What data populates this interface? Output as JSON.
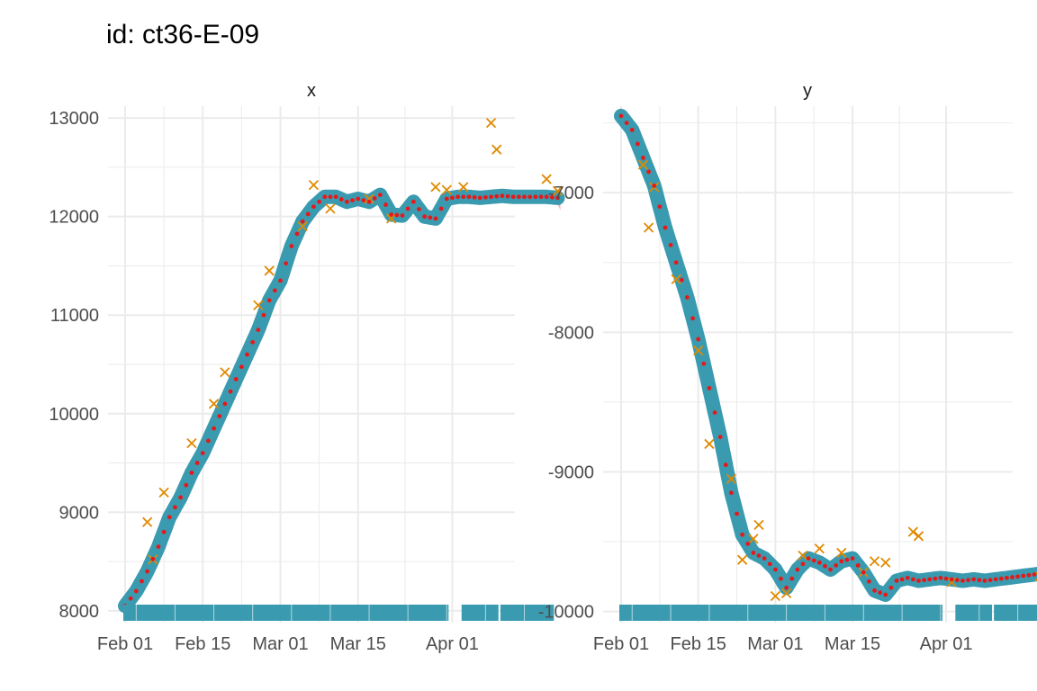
{
  "title": "id: ct36-E-09",
  "colors": {
    "band": "#3a9bb0",
    "point": "#e31a1c",
    "outlier": "#e08a00",
    "ribbon": "#f4a6a6",
    "grid": "#ebebeb",
    "axis_text": "#4d4d4d"
  },
  "chart_data": [
    {
      "type": "line",
      "panel": "x",
      "x_ticks": [
        "Feb 01",
        "Feb 15",
        "Mar 01",
        "Mar 15",
        "Apr 01"
      ],
      "y_ticks": [
        "8000",
        "9000",
        "10000",
        "11000",
        "12000",
        "13000"
      ],
      "ylim": [
        7880,
        13120
      ],
      "fit_knots": [
        [
          0,
          8050
        ],
        [
          2,
          8200
        ],
        [
          4,
          8400
        ],
        [
          6,
          8650
        ],
        [
          8,
          8950
        ],
        [
          10,
          9150
        ],
        [
          12,
          9400
        ],
        [
          14,
          9600
        ],
        [
          16,
          9850
        ],
        [
          18,
          10100
        ],
        [
          20,
          10350
        ],
        [
          22,
          10600
        ],
        [
          24,
          10850
        ],
        [
          26,
          11150
        ],
        [
          28,
          11350
        ],
        [
          30,
          11700
        ],
        [
          32,
          11950
        ],
        [
          34,
          12100
        ],
        [
          36,
          12200
        ],
        [
          38,
          12200
        ],
        [
          40,
          12150
        ],
        [
          42,
          12180
        ],
        [
          44,
          12150
        ],
        [
          46,
          12220
        ],
        [
          48,
          12020
        ],
        [
          50,
          12010
        ],
        [
          52,
          12150
        ],
        [
          54,
          12000
        ],
        [
          56,
          11980
        ],
        [
          58,
          12180
        ],
        [
          60,
          12200
        ],
        [
          62,
          12200
        ],
        [
          64,
          12190
        ],
        [
          66,
          12200
        ],
        [
          68,
          12210
        ],
        [
          70,
          12200
        ],
        [
          72,
          12200
        ],
        [
          74,
          12200
        ],
        [
          76,
          12200
        ],
        [
          78,
          12190
        ]
      ],
      "outliers": [
        [
          4,
          8900
        ],
        [
          5,
          8520
        ],
        [
          7,
          9200
        ],
        [
          12,
          9700
        ],
        [
          16,
          10100
        ],
        [
          18,
          10420
        ],
        [
          24,
          11100
        ],
        [
          26,
          11450
        ],
        [
          32,
          11900
        ],
        [
          34,
          12320
        ],
        [
          37,
          12080
        ],
        [
          44,
          12180
        ],
        [
          48,
          11980
        ],
        [
          56,
          12300
        ],
        [
          58,
          12270
        ],
        [
          61,
          12300
        ],
        [
          66,
          12950
        ],
        [
          67,
          12680
        ],
        [
          76,
          12380
        ],
        [
          78,
          12260
        ]
      ],
      "rug_days": [
        [
          0,
          58
        ],
        [
          61,
          67
        ],
        [
          68,
          77
        ]
      ]
    },
    {
      "type": "line",
      "panel": "y",
      "x_ticks": [
        "Feb 01",
        "Feb 15",
        "Mar 01",
        "Mar 15",
        "Apr 01"
      ],
      "y_ticks": [
        "-7000",
        "-8000",
        "-9000",
        "-10000"
      ],
      "ylim": [
        -10080,
        -6380
      ],
      "fit_knots": [
        [
          0,
          -6450
        ],
        [
          2,
          -6550
        ],
        [
          4,
          -6750
        ],
        [
          6,
          -6950
        ],
        [
          8,
          -7250
        ],
        [
          10,
          -7500
        ],
        [
          12,
          -7750
        ],
        [
          14,
          -8050
        ],
        [
          16,
          -8400
        ],
        [
          18,
          -8750
        ],
        [
          20,
          -9150
        ],
        [
          22,
          -9450
        ],
        [
          24,
          -9580
        ],
        [
          26,
          -9620
        ],
        [
          28,
          -9700
        ],
        [
          30,
          -9830
        ],
        [
          32,
          -9700
        ],
        [
          34,
          -9620
        ],
        [
          36,
          -9650
        ],
        [
          38,
          -9700
        ],
        [
          40,
          -9640
        ],
        [
          42,
          -9620
        ],
        [
          44,
          -9720
        ],
        [
          46,
          -9850
        ],
        [
          48,
          -9880
        ],
        [
          50,
          -9780
        ],
        [
          52,
          -9760
        ],
        [
          54,
          -9780
        ],
        [
          56,
          -9770
        ],
        [
          58,
          -9760
        ],
        [
          60,
          -9770
        ],
        [
          62,
          -9780
        ],
        [
          64,
          -9770
        ],
        [
          66,
          -9780
        ],
        [
          68,
          -9770
        ],
        [
          70,
          -9760
        ],
        [
          72,
          -9750
        ],
        [
          74,
          -9740
        ],
        [
          76,
          -9730
        ],
        [
          78,
          -9730
        ]
      ],
      "outliers": [
        [
          4,
          -6800
        ],
        [
          5,
          -7250
        ],
        [
          6,
          -6960
        ],
        [
          10,
          -7620
        ],
        [
          14,
          -8130
        ],
        [
          16,
          -8800
        ],
        [
          20,
          -9050
        ],
        [
          22,
          -9630
        ],
        [
          24,
          -9480
        ],
        [
          25,
          -9380
        ],
        [
          28,
          -9890
        ],
        [
          30,
          -9870
        ],
        [
          33,
          -9600
        ],
        [
          36,
          -9550
        ],
        [
          40,
          -9580
        ],
        [
          44,
          -9720
        ],
        [
          46,
          -9640
        ],
        [
          48,
          -9650
        ],
        [
          53,
          -9430
        ],
        [
          54,
          -9460
        ],
        [
          60,
          -9790
        ],
        [
          76,
          -9750
        ]
      ],
      "rug_days": [
        [
          0,
          58
        ],
        [
          61,
          67
        ],
        [
          68,
          77
        ]
      ]
    }
  ],
  "panels": [
    {
      "label": "x"
    },
    {
      "label": "y"
    }
  ]
}
